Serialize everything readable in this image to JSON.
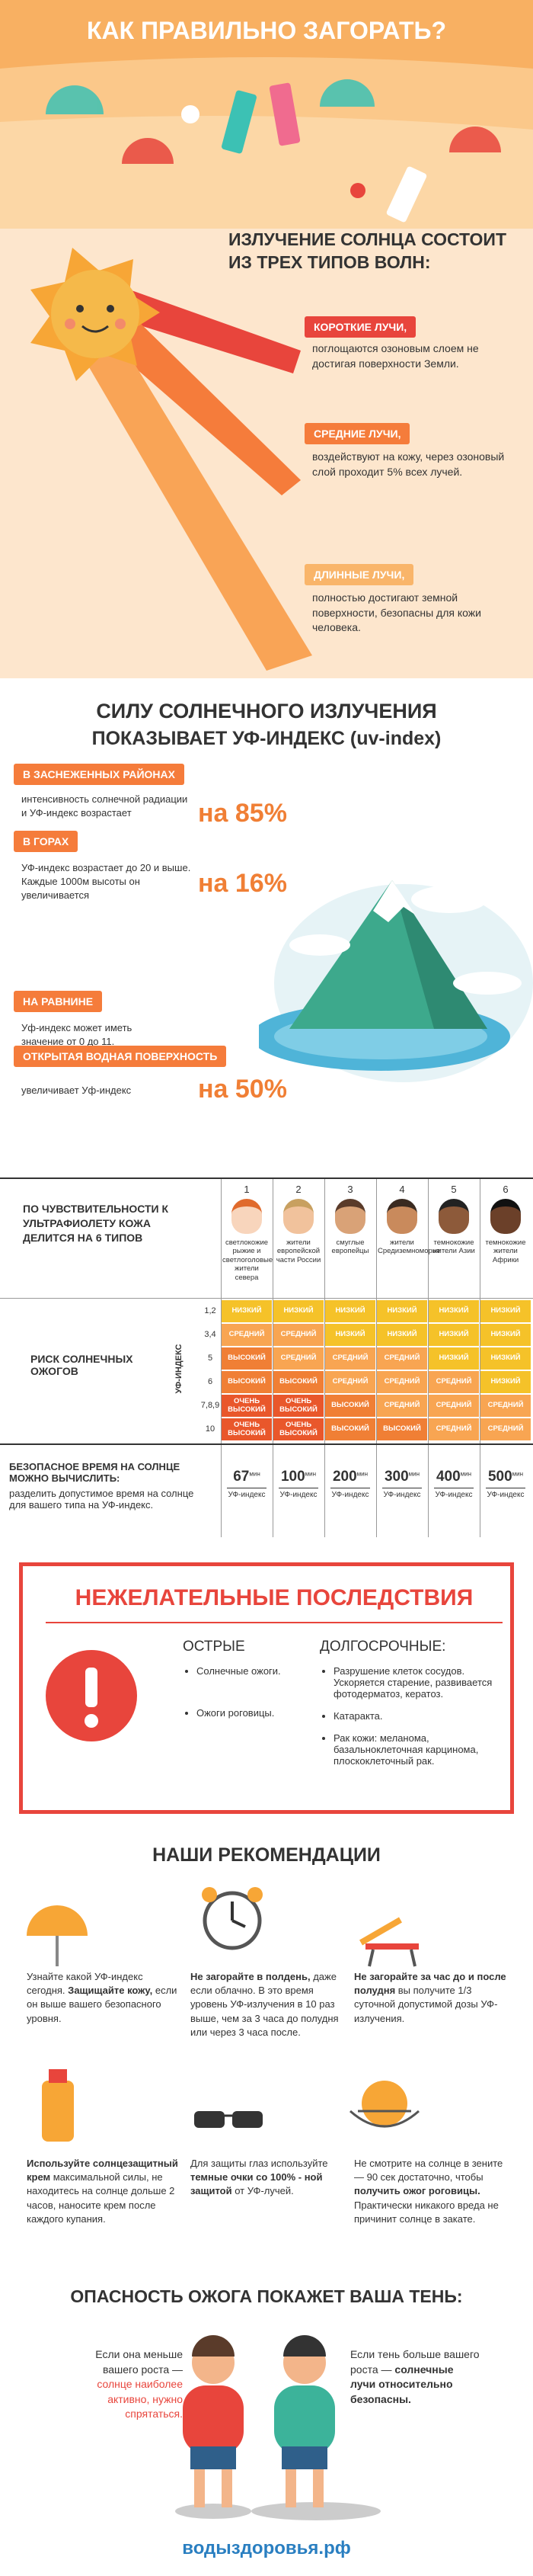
{
  "header": {
    "title": "КАК ПРАВИЛЬНО ЗАГОРАТЬ?"
  },
  "sun": {
    "title": "ИЗЛУЧЕНИЕ СОЛНЦА СОСТОИТ ИЗ ТРЕХ ТИПОВ ВОЛН:",
    "rays": [
      {
        "label": "КОРОТКИЕ ЛУЧИ,",
        "text": "поглощаются озоновым слоем не достигая поверхности Земли."
      },
      {
        "label": "СРЕДНИЕ ЛУЧИ,",
        "text": "воздействуют на кожу, через озоновый слой проходит 5% всех лучей."
      },
      {
        "label": "ДЛИННЫЕ ЛУЧИ,",
        "text": "полностью достигают земной поверхности, безопасны для кожи человека."
      }
    ]
  },
  "uv": {
    "title_line1": "СИЛУ СОЛНЕЧНОГО ИЗЛУЧЕНИЯ",
    "title_line2": "ПОКАЗЫВАЕТ УФ-ИНДЕКС (uv-index)",
    "items": [
      {
        "label": "В ЗАСНЕЖЕННЫХ РАЙОНАХ",
        "text": "интенсивность солнечной радиации и УФ-индекс возрастает",
        "value": "на 85%"
      },
      {
        "label": "В ГОРАХ",
        "text": "УФ-индекс возрастает до 20 и выше. Каждые 1000м высоты он увеличивается",
        "value": "на 16%"
      },
      {
        "label": "НА РАВНИНЕ",
        "text": "Уф-индекс может иметь значение от 0 до 11."
      },
      {
        "label": "ОТКРЫТАЯ ВОДНАЯ ПОВЕРХНОСТЬ",
        "text": "увеличивает Уф-индекс",
        "value": "на 50%"
      }
    ]
  },
  "table": {
    "types_caption": "ПО ЧУВСТВИТЕЛЬНОСТИ К УЛЬТРАФИОЛЕТУ КОЖА ДЕЛИТСЯ НА 6 ТИПОВ",
    "types": [
      {
        "number": "1",
        "text": "светлокожие рыжие и светлоголовые жители севера"
      },
      {
        "number": "2",
        "text": "жители европейской части России"
      },
      {
        "number": "3",
        "text": "смуглые европейцы"
      },
      {
        "number": "4",
        "text": "жители Средиземноморья"
      },
      {
        "number": "5",
        "text": "темнокожие жители Азии"
      },
      {
        "number": "6",
        "text": "темнокожие жители Африки"
      }
    ],
    "risk_caption": "РИСК СОЛНЕЧНЫХ ОЖОГОВ",
    "uv_caption": "УФ-ИНДЕКС",
    "risk_rows": [
      {
        "uv": "1,2",
        "cells": [
          "НИЗКИЙ",
          "НИЗКИЙ",
          "НИЗКИЙ",
          "НИЗКИЙ",
          "НИЗКИЙ",
          "НИЗКИЙ"
        ],
        "colors": [
          "#f5c229",
          "#f5c229",
          "#f5c229",
          "#f5c229",
          "#f5c229",
          "#f5c229"
        ]
      },
      {
        "uv": "3,4",
        "cells": [
          "СРЕДНИЙ",
          "СРЕДНИЙ",
          "НИЗКИЙ",
          "НИЗКИЙ",
          "НИЗКИЙ",
          "НИЗКИЙ"
        ],
        "colors": [
          "#f8a552",
          "#f8a552",
          "#f5c229",
          "#f5c229",
          "#f5c229",
          "#f5c229"
        ]
      },
      {
        "uv": "5",
        "cells": [
          "ВЫСОКИЙ",
          "СРЕДНИЙ",
          "СРЕДНИЙ",
          "СРЕДНИЙ",
          "НИЗКИЙ",
          "НИЗКИЙ"
        ],
        "colors": [
          "#f07f35",
          "#f8a552",
          "#f8a552",
          "#f8a552",
          "#f5c229",
          "#f5c229"
        ]
      },
      {
        "uv": "6",
        "cells": [
          "ВЫСОКИЙ",
          "ВЫСОКИЙ",
          "СРЕДНИЙ",
          "СРЕДНИЙ",
          "СРЕДНИЙ",
          "НИЗКИЙ"
        ],
        "colors": [
          "#f07f35",
          "#f07f35",
          "#f8a552",
          "#f8a552",
          "#f8a552",
          "#f5c229"
        ]
      },
      {
        "uv": "7,8,9",
        "cells": [
          "ОЧЕНЬ ВЫСОКИЙ",
          "ОЧЕНЬ ВЫСОКИЙ",
          "ВЫСОКИЙ",
          "СРЕДНИЙ",
          "СРЕДНИЙ",
          "СРЕДНИЙ"
        ],
        "colors": [
          "#e9572b",
          "#e9572b",
          "#f07f35",
          "#f8a552",
          "#f8a552",
          "#f8a552"
        ]
      },
      {
        "uv": "10",
        "cells": [
          "ОЧЕНЬ ВЫСОКИЙ",
          "ОЧЕНЬ ВЫСОКИЙ",
          "ВЫСОКИЙ",
          "ВЫСОКИЙ",
          "СРЕДНИЙ",
          "СРЕДНИЙ"
        ],
        "colors": [
          "#e9572b",
          "#e9572b",
          "#f07f35",
          "#f07f35",
          "#f8a552",
          "#f8a552"
        ]
      }
    ],
    "safe_caption": "БЕЗОПАСНОЕ ВРЕМЯ НА СОЛНЦЕ МОЖНО ВЫЧИСЛИТЬ:",
    "safe_text": "разделить допустимое время на солнце для вашего типа на УФ-индекс.",
    "safe_times": [
      {
        "value": "67",
        "unit": "мин",
        "note": "УФ-индекс"
      },
      {
        "value": "100",
        "unit": "мин",
        "note": "УФ-индекс"
      },
      {
        "value": "200",
        "unit": "мин",
        "note": "УФ-индекс"
      },
      {
        "value": "300",
        "unit": "мин",
        "note": "УФ-индекс"
      },
      {
        "value": "400",
        "unit": "мин",
        "note": "УФ-индекс"
      },
      {
        "value": "500",
        "unit": "мин",
        "note": "УФ-индекс"
      }
    ]
  },
  "consequences": {
    "title": "НЕЖЕЛАТЕЛЬНЫЕ ПОСЛЕДСТВИЯ",
    "acute_title": "ОСТРЫЕ",
    "acute": [
      "Солнечные ожоги.",
      "Ожоги роговицы."
    ],
    "long_title": "ДОЛГОСРОЧНЫЕ:",
    "long": [
      "Разрушение клеток сосудов. Ускоряется старение, развивается фотодерматоз, кератоз.",
      "Катаракта.",
      "Рак кожи: меланома, базальноклеточная карцинома, плоскоклеточный рак."
    ]
  },
  "recommendations": {
    "title": "НАШИ РЕКОМЕНДАЦИИ",
    "items": [
      {
        "parts": [
          {
            "text": "Узнайте какой УФ-индекс сегодня. "
          },
          {
            "text": "Защищайте кожу,",
            "bold": true
          },
          {
            "text": " если он выше вашего безопасного уровня."
          }
        ]
      },
      {
        "parts": [
          {
            "text": "Не загорайте в полдень,",
            "bold": true
          },
          {
            "text": " даже если облачно. В это время уровень УФ-излучения в 10 раз выше, чем за 3 часа до полудня или через 3 часа после."
          }
        ]
      },
      {
        "parts": [
          {
            "text": "Не загорайте за час до и после полудня",
            "bold": true
          },
          {
            "text": " вы получите 1/3 суточной допустимой дозы УФ-излучения."
          }
        ]
      },
      {
        "parts": [
          {
            "text": "Используйте солнцезащитный крем",
            "bold": true
          },
          {
            "text": " максимальной силы, не находитесь на солнце дольше 2 часов, наносите крем после каждого купания."
          }
        ]
      },
      {
        "parts": [
          {
            "text": "Для защиты глаз используйте "
          },
          {
            "text": "темные очки со 100% - ной защитой",
            "bold": true
          },
          {
            "text": " от УФ-лучей."
          }
        ]
      },
      {
        "parts": [
          {
            "text": "Не смотрите на солнце в зените — 90 сек достаточно, чтобы "
          },
          {
            "text": "получить ожог роговицы.",
            "bold": true
          },
          {
            "text": " Практически никакого вреда не причинит солнце в закате."
          }
        ]
      }
    ]
  },
  "shadow": {
    "title": "ОПАСНОСТЬ ОЖОГА ПОКАЖЕТ ВАША ТЕНЬ:",
    "left": [
      {
        "text": "Если она меньше вашего роста — "
      },
      {
        "text": "солнце наиболее активно, нужно спрятаться.",
        "color": "#e8453c"
      }
    ],
    "right": [
      {
        "text": "Если тень больше вашего роста — "
      },
      {
        "text": "солнечные лучи относительно безопасны.",
        "bold": true
      }
    ]
  },
  "footer": {
    "site": "водыздоровья.рф"
  }
}
